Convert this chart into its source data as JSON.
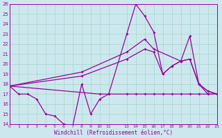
{
  "xlabel": "Windchill (Refroidissement éolien,°C)",
  "xlim": [
    0,
    23
  ],
  "ylim": [
    14,
    26
  ],
  "yticks": [
    14,
    15,
    16,
    17,
    18,
    19,
    20,
    21,
    22,
    23,
    24,
    25,
    26
  ],
  "xtick_vals": [
    0,
    1,
    2,
    3,
    4,
    5,
    6,
    7,
    8,
    9,
    10,
    11,
    13,
    14,
    15,
    16,
    17,
    18,
    19,
    20,
    21,
    22,
    23
  ],
  "xtick_labels": [
    "0",
    "1",
    "2",
    "3",
    "4",
    "5",
    "6",
    "7",
    "8",
    "9",
    "10",
    "11",
    "13",
    "14",
    "15",
    "16",
    "17",
    "18",
    "19",
    "20",
    "21",
    "22",
    "23"
  ],
  "bg_color": "#cce8ee",
  "grid_color": "#a8d4cc",
  "line_color": "#990099",
  "lines": [
    {
      "x": [
        0,
        1,
        2,
        3,
        4,
        5,
        6,
        7,
        8,
        9,
        10,
        11,
        13,
        14,
        15,
        16,
        17,
        18,
        19,
        20,
        21,
        22,
        23
      ],
      "y": [
        17.8,
        17.0,
        17.0,
        16.5,
        15.0,
        14.8,
        14.0,
        13.8,
        18.0,
        15.0,
        16.5,
        17.0,
        23.0,
        26.0,
        24.8,
        23.2,
        19.0,
        19.8,
        20.3,
        20.5,
        18.0,
        17.0,
        17.0
      ],
      "marker": true
    },
    {
      "x": [
        0,
        10,
        11,
        13,
        14,
        15,
        16,
        17,
        18,
        19,
        20,
        21,
        22,
        23
      ],
      "y": [
        17.8,
        17.0,
        17.0,
        17.0,
        17.0,
        17.0,
        17.0,
        17.0,
        17.0,
        17.0,
        17.0,
        17.0,
        17.0,
        17.0
      ],
      "marker": true
    },
    {
      "x": [
        0,
        8,
        13,
        15,
        16,
        17,
        18,
        19,
        20,
        21,
        22,
        23
      ],
      "y": [
        17.8,
        18.8,
        20.5,
        21.5,
        21.2,
        19.0,
        19.8,
        20.3,
        20.5,
        18.0,
        17.3,
        17.0
      ],
      "marker": true
    },
    {
      "x": [
        0,
        8,
        13,
        15,
        16,
        19,
        20,
        21,
        22,
        23
      ],
      "y": [
        17.8,
        19.2,
        21.2,
        22.5,
        21.5,
        20.3,
        22.8,
        18.0,
        17.3,
        17.0
      ],
      "marker": true
    }
  ]
}
